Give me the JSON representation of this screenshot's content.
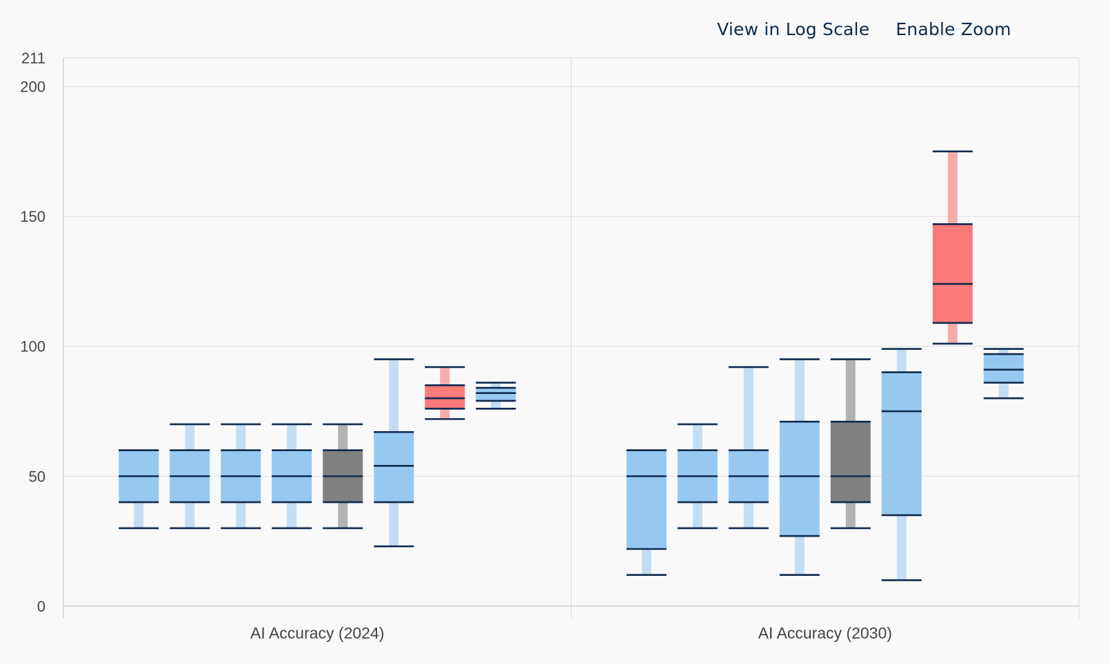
{
  "controls": {
    "log_scale_label": "View in Log Scale",
    "zoom_label": "Enable Zoom"
  },
  "colors": {
    "blue_box": "#97c9f0",
    "blue_whisker": "#c3def4",
    "red_box": "#fa7a7a",
    "red_whisker": "#f7acac",
    "gray_box": "#808080",
    "gray_whisker": "#b3b3b3",
    "line": "#0e2a4d"
  },
  "chart_data": {
    "type": "box",
    "title": "",
    "xlabel": "",
    "ylabel": "",
    "ylim": [
      0,
      211
    ],
    "yticks": [
      "0",
      "50",
      "100",
      "150",
      "200",
      "211"
    ],
    "grid": true,
    "categories": [
      "AI Accuracy (2024)",
      "AI Accuracy (2030)"
    ],
    "groups": [
      {
        "category": "AI Accuracy (2024)",
        "boxes": [
          {
            "color": "blue",
            "min": 30,
            "q1": 40,
            "median": 50,
            "q3": 60,
            "max": 60
          },
          {
            "color": "blue",
            "min": 30,
            "q1": 40,
            "median": 50,
            "q3": 60,
            "max": 70
          },
          {
            "color": "blue",
            "min": 30,
            "q1": 40,
            "median": 50,
            "q3": 60,
            "max": 70
          },
          {
            "color": "blue",
            "min": 30,
            "q1": 40,
            "median": 50,
            "q3": 60,
            "max": 70
          },
          {
            "color": "gray",
            "min": 30,
            "q1": 40,
            "median": 50,
            "q3": 60,
            "max": 70
          },
          {
            "color": "blue",
            "min": 23,
            "q1": 40,
            "median": 54,
            "q3": 67,
            "max": 95
          },
          {
            "color": "red",
            "min": 72,
            "q1": 76,
            "median": 80,
            "q3": 85,
            "max": 92
          },
          {
            "color": "blue",
            "min": 76,
            "q1": 79,
            "median": 82,
            "q3": 84,
            "max": 86
          }
        ]
      },
      {
        "category": "AI Accuracy (2030)",
        "boxes": [
          {
            "color": "blue",
            "min": 12,
            "q1": 22,
            "median": 50,
            "q3": 60,
            "max": 60
          },
          {
            "color": "blue",
            "min": 30,
            "q1": 40,
            "median": 50,
            "q3": 60,
            "max": 70
          },
          {
            "color": "blue",
            "min": 30,
            "q1": 40,
            "median": 50,
            "q3": 60,
            "max": 92
          },
          {
            "color": "blue",
            "min": 12,
            "q1": 27,
            "median": 50,
            "q3": 71,
            "max": 95
          },
          {
            "color": "gray",
            "min": 30,
            "q1": 40,
            "median": 50,
            "q3": 71,
            "max": 95
          },
          {
            "color": "blue",
            "min": 10,
            "q1": 35,
            "median": 75,
            "q3": 90,
            "max": 99
          },
          {
            "color": "red",
            "min": 101,
            "q1": 109,
            "median": 124,
            "q3": 147,
            "max": 175
          },
          {
            "color": "blue",
            "min": 80,
            "q1": 86,
            "median": 91,
            "q3": 97,
            "max": 99
          }
        ]
      }
    ]
  }
}
